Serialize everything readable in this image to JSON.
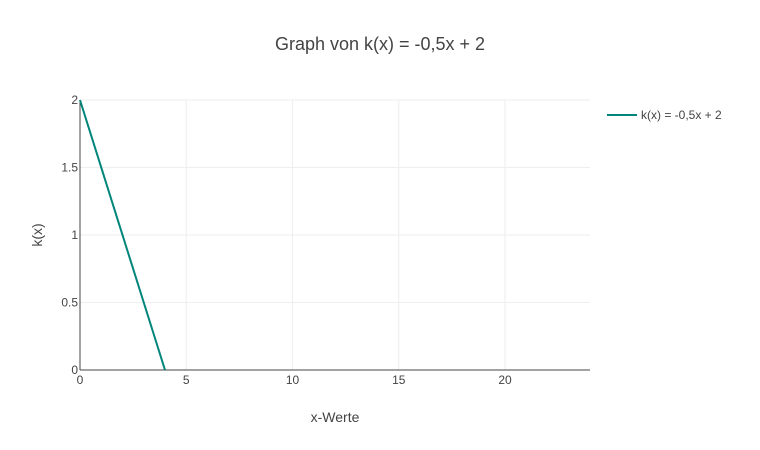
{
  "chart_data": {
    "type": "line",
    "title": "Graph von k(x) = -0,5x + 2",
    "xlabel": "x-Werte",
    "ylabel": "k(x)",
    "xlim": [
      0,
      24
    ],
    "ylim": [
      0,
      2
    ],
    "x_ticks": [
      0,
      5,
      10,
      15,
      20
    ],
    "y_ticks": [
      0,
      0.5,
      1,
      1.5,
      2
    ],
    "x_tick_labels": [
      "0",
      "5",
      "10",
      "15",
      "20"
    ],
    "y_tick_labels": [
      "0",
      "0.5",
      "1",
      "1.5",
      "2"
    ],
    "grid": true,
    "legend_position": "top-right",
    "series": [
      {
        "name": "k(x) = -0,5x + 2",
        "color": "#00857a",
        "x": [
          0,
          4
        ],
        "y": [
          2,
          0
        ]
      }
    ]
  }
}
